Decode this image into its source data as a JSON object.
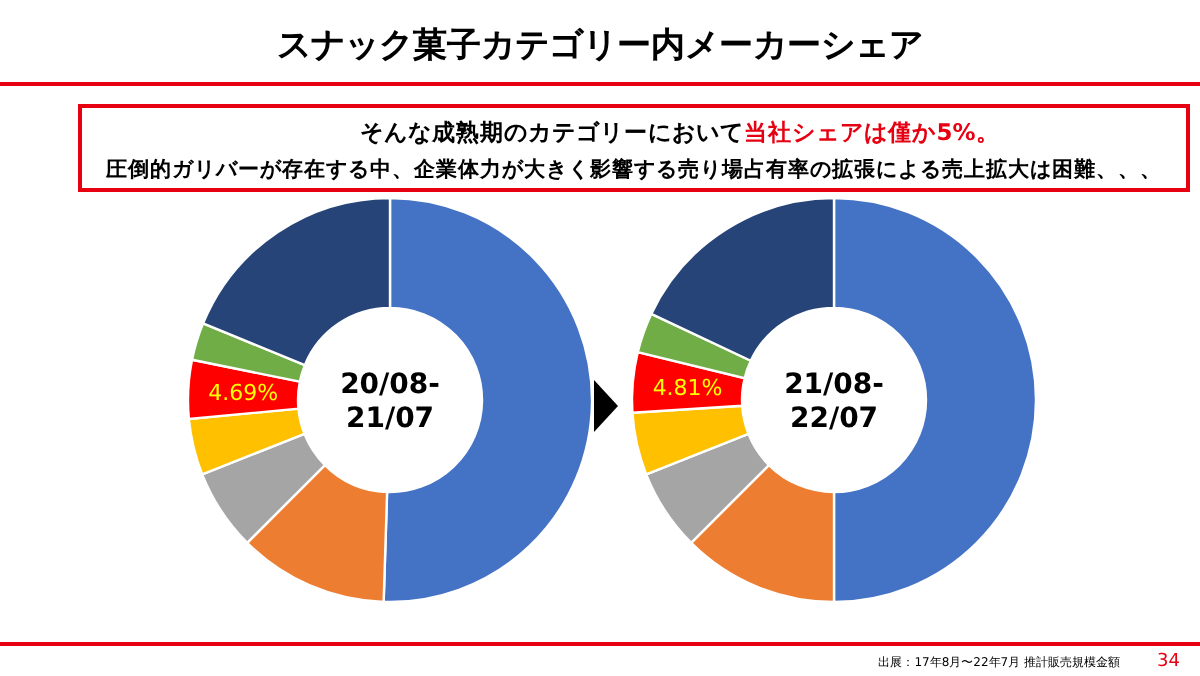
{
  "chart_data": [
    {
      "type": "donut",
      "title": "スナック菓子カテゴリー内メーカーシェア",
      "subtitle": "20/08-\n21/07",
      "categories": [
        null,
        null,
        null,
        null,
        null,
        null,
        null
      ],
      "values": [
        50.5,
        12,
        6.5,
        4.5,
        4.69,
        3,
        18.81
      ],
      "colors": [
        "#4472c4",
        "#ed7d31",
        "#a5a5a5",
        "#ffc000",
        "#ff0000",
        "#70ad47",
        "#264478"
      ],
      "value_labels": [
        null,
        null,
        null,
        null,
        "4.69%",
        null,
        null
      ],
      "annotations": [
        "そんな成熟期のカテゴリーにおいて",
        "当社シェアは僅か5%。",
        "圧倒的ガリバーが存在する中、企業体力が大きく影響する売り場占有率の拡張による売上拡大は困難、、、",
        "出展：17年8月〜22年7月 推計販売規模金額",
        "34"
      ]
    },
    {
      "type": "donut",
      "subtitle": "21/08-\n22/07",
      "categories": [
        null,
        null,
        null,
        null,
        null,
        null,
        null
      ],
      "values": [
        50,
        12.5,
        6.5,
        5,
        4.81,
        3.2,
        17.99
      ],
      "colors": [
        "#4472c4",
        "#ed7d31",
        "#a5a5a5",
        "#ffc000",
        "#ff0000",
        "#70ad47",
        "#264478"
      ],
      "value_labels": [
        null,
        null,
        null,
        null,
        "4.81%",
        null,
        null
      ]
    }
  ]
}
